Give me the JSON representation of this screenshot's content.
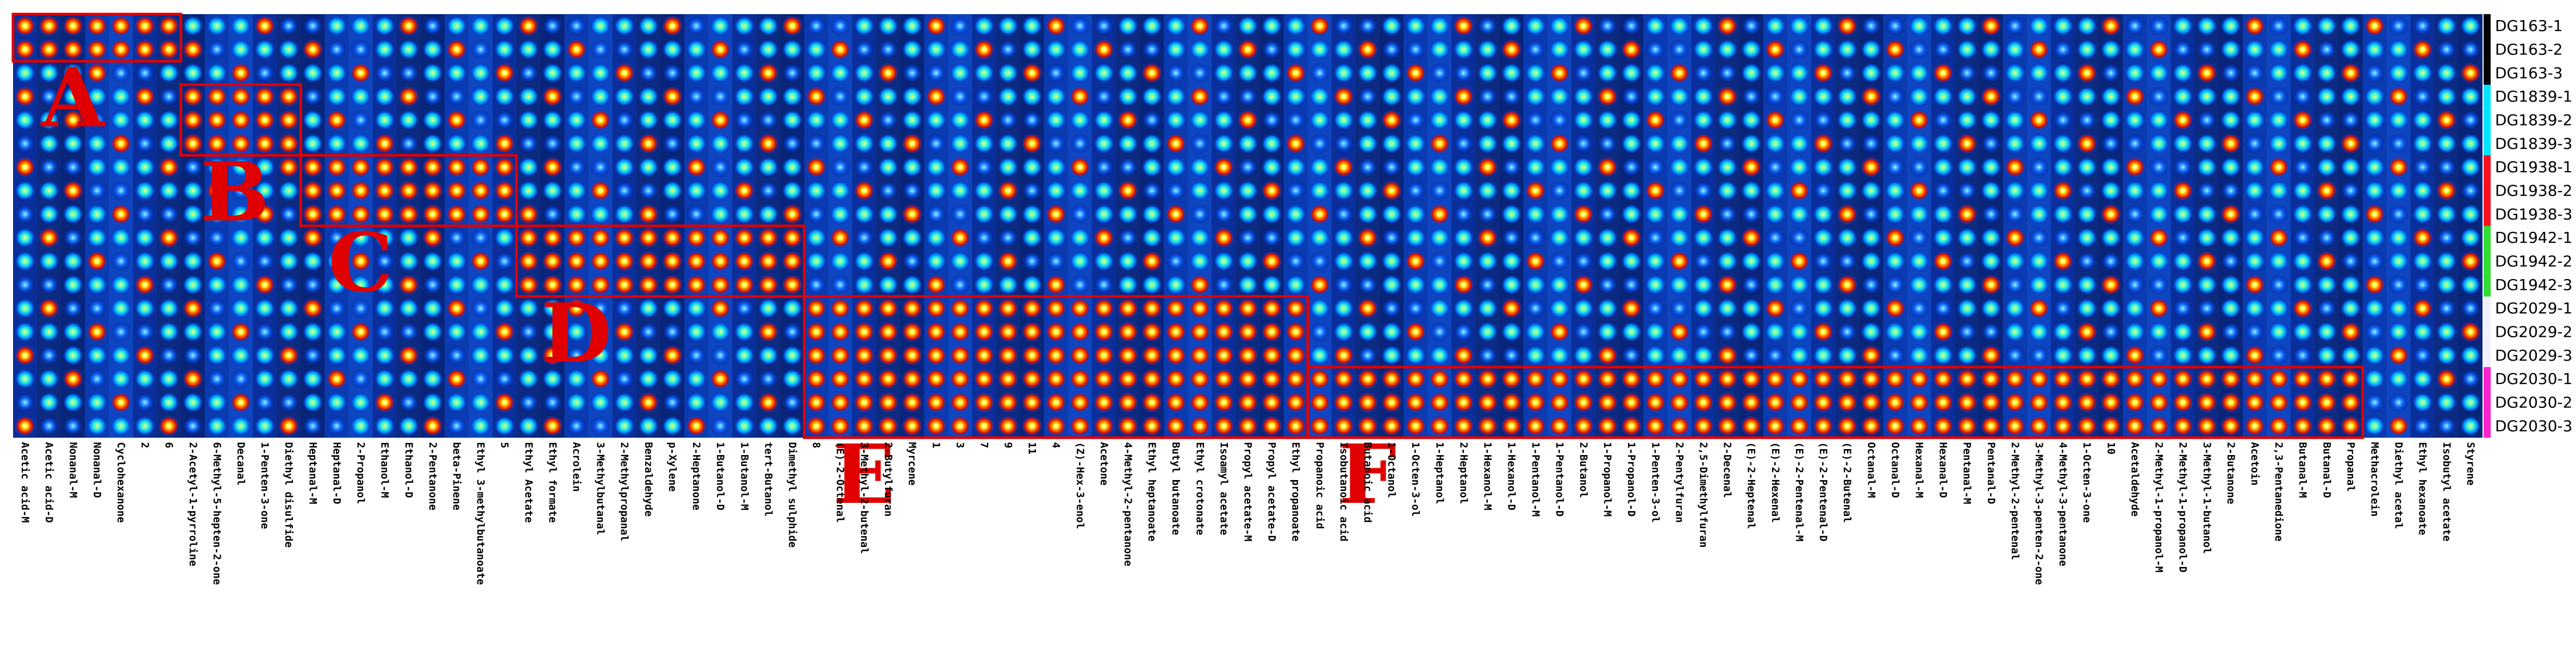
{
  "chart_data": {
    "type": "heatmap",
    "title": "",
    "xlabel": "",
    "ylabel": "",
    "colormap": "jet (dark blue = low, red = high)",
    "columns": [
      "Acetic acid-M",
      "Acetic acid-D",
      "Nonanal-M",
      "Nonanal-D",
      "Cyclohexanone",
      "2",
      "6",
      "2-Acetyl-1-pyrroline",
      "6-Methyl-5-hepten-2-one",
      "Decanal",
      "1-Penten-3-one",
      "Diethyl disulfide",
      "Heptanal-M",
      "Heptanal-D",
      "2-Propanol",
      "Ethanol-M",
      "Ethanol-D",
      "2-Pentanone",
      "beta-Pinene",
      "Ethyl 3-methylbutanoate",
      "5",
      "Ethyl Acetate",
      "Ethyl formate",
      "Acrolein",
      "3-Methylbutanal",
      "2-Methylpropanal",
      "Benzaldehyde",
      "p-Xylene",
      "2-Heptanone",
      "1-Butanol-D",
      "1-Butanol-M",
      "tert-Butanol",
      "Dimethyl sulphide",
      "8",
      "(E)-2-Octenal",
      "3-Methyl-2-butenal",
      "2-Butylfuran",
      "Myrcene",
      "1",
      "3",
      "7",
      "9",
      "11",
      "4",
      "(Z)-Hex-3-enol",
      "Acetone",
      "4-Methyl-2-pentanone",
      "Ethyl heptanoate",
      "Butyl butanoate",
      "Ethyl crotonate",
      "Isoamyl acetate",
      "Propyl acetate-M",
      "Propyl acetate-D",
      "Ethyl propanoate",
      "Propanoic acid",
      "Isobutanoic acid",
      "Butanoic acid",
      "1-Octanol",
      "1-Octen-3-ol",
      "1-Heptanol",
      "2-Heptanol",
      "1-Hexanol-M",
      "1-Hexanol-D",
      "1-Pentanol-M",
      "1-Pentanol-D",
      "2-Butanol",
      "1-Propanol-M",
      "1-Propanol-D",
      "1-Penten-3-ol",
      "2-Pentylfuran",
      "2,5-Dimethylfuran",
      "2-Decenal",
      "(E)-2-Heptenal",
      "(E)-2-Hexenal",
      "(E)-2-Pentenal-M",
      "(E)-2-Pentenal-D",
      "(E)-2-Butenal",
      "Octanal-M",
      "Octanal-D",
      "Hexanal-M",
      "Hexanal-D",
      "Pentanal-M",
      "Pentanal-D",
      "2-Methyl-2-pentenal",
      "3-Methyl-3-penten-2-one",
      "4-Methyl-3-pentanone",
      "1-Octen-3-one",
      "10",
      "Acetaldehyde",
      "2-Methyl-1-propanol-M",
      "2-Methyl-1-propanol-D",
      "3-Methyl-1-butanol",
      "2-Butanone",
      "Acetoin",
      "2,3-Pentanedione",
      "Butanal-M",
      "Butanal-D",
      "Propanal",
      "Methacrolein",
      "Diethyl acetal",
      "Ethyl hexanoate",
      "Isobutyl acetate",
      "Styrene"
    ],
    "rows": [
      "DG163-1",
      "DG163-2",
      "DG163-3",
      "DG1839-1",
      "DG1839-2",
      "DG1839-3",
      "DG1938-1",
      "DG1938-2",
      "DG1938-3",
      "DG1942-1",
      "DG1942-2",
      "DG1942-3",
      "DG2029-1",
      "DG2029-2",
      "DG2029-3",
      "DG2030-1",
      "DG2030-2",
      "DG2030-3"
    ],
    "row_group_colors": {
      "DG163": "#000000",
      "DG1839": "#00e5ff",
      "DG1938": "#ff1020",
      "DG1942": "#33dd33",
      "DG2029": "#f0f0ff",
      "DG2030": "#ff22cc"
    },
    "regions": [
      {
        "label": "A",
        "columns": [
          "Acetic acid-M",
          "6"
        ],
        "rows": [
          "DG163-1",
          "DG163-2"
        ]
      },
      {
        "label": "B",
        "columns": [
          "2-Acetyl-1-pyrroline",
          "Diethyl disulfide"
        ],
        "rows": [
          "DG1839-1",
          "DG1839-3"
        ]
      },
      {
        "label": "C",
        "columns": [
          "Heptanal-M",
          "5"
        ],
        "rows": [
          "DG1938-1",
          "DG1938-3"
        ]
      },
      {
        "label": "D",
        "columns": [
          "Ethyl Acetate",
          "Dimethyl sulphide"
        ],
        "rows": [
          "DG1942-1",
          "DG1942-3"
        ]
      },
      {
        "label": "E",
        "columns": [
          "8",
          "Ethyl propanoate"
        ],
        "rows": [
          "DG2029-1",
          "DG2030-3"
        ]
      },
      {
        "label": "F",
        "columns": [
          "Propanoic acid",
          "Propanal"
        ],
        "rows": [
          "DG2030-1",
          "DG2030-3"
        ]
      }
    ]
  }
}
